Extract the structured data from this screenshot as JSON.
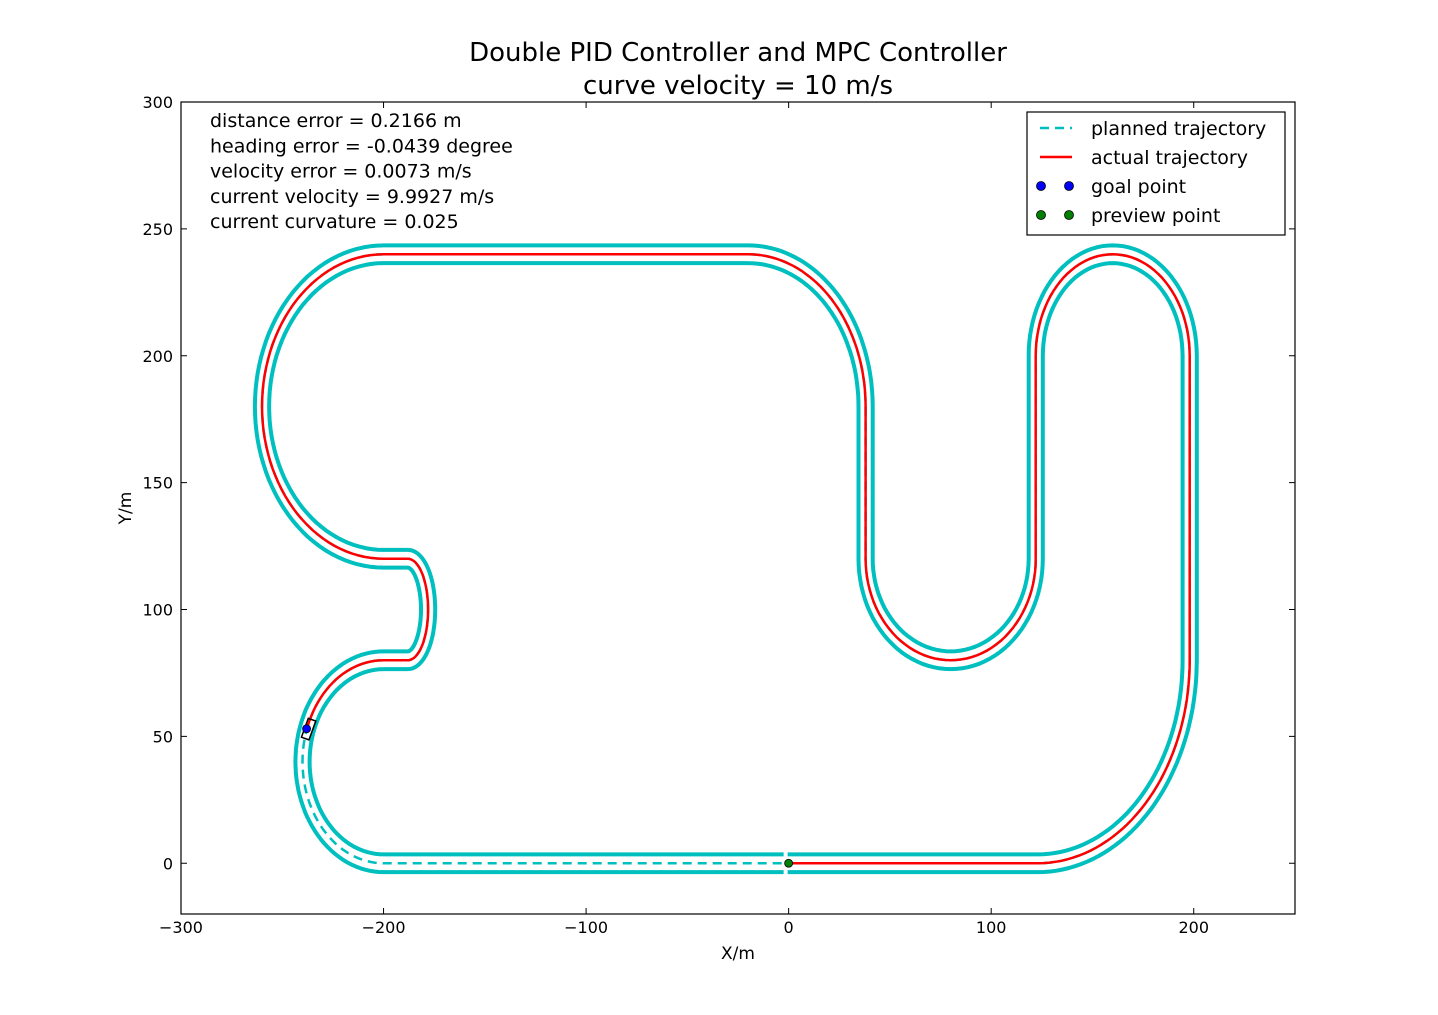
{
  "chart_data": {
    "type": "line",
    "title": "Double PID Controller and MPC Controller",
    "subtitle": "curve velocity = 10 m/s",
    "xlabel": "X/m",
    "ylabel": "Y/m",
    "xlim": [
      -300,
      250
    ],
    "ylim": [
      -20,
      300
    ],
    "xticks": [
      -300,
      -200,
      -100,
      0,
      100,
      200
    ],
    "yticks": [
      0,
      50,
      100,
      150,
      200,
      250,
      300
    ],
    "xtick_labels": [
      "−300",
      "−200",
      "−100",
      "0",
      "100",
      "200"
    ],
    "ytick_labels": [
      "0",
      "50",
      "100",
      "150",
      "200",
      "250",
      "300"
    ],
    "grid": false,
    "legend_position": "top-right",
    "legend": [
      {
        "label": "planned trajectory",
        "style": "dashed-line",
        "color": "#00bfbf"
      },
      {
        "label": "actual trajectory",
        "style": "solid-line",
        "color": "#ff0000"
      },
      {
        "label": "goal point",
        "style": "marker",
        "color": "#0000ff"
      },
      {
        "label": "preview point",
        "style": "marker",
        "color": "#008000"
      }
    ],
    "info_lines": [
      "distance error = 0.2166 m",
      "heading error = -0.0439 degree",
      "velocity error = 0.0073 m/s",
      "current velocity = 9.9927 m/s",
      "current curvature = 0.025"
    ],
    "road_half_width": 3.5,
    "track_segments": [
      {
        "kind": "line",
        "from": [
          0,
          0
        ],
        "to": [
          123,
          0
        ]
      },
      {
        "kind": "arc",
        "center": [
          123,
          80
        ],
        "r": 80,
        "from_deg": -90,
        "to_deg": 0,
        "ry": 80,
        "rx": 75
      },
      {
        "kind": "line",
        "from": [
          198,
          80
        ],
        "to": [
          198,
          200
        ]
      },
      {
        "kind": "arc",
        "center": [
          160,
          200
        ],
        "rx": 38,
        "ry": 40,
        "from_deg": 0,
        "to_deg": 180
      },
      {
        "kind": "line",
        "from": [
          122,
          200
        ],
        "to": [
          122,
          120
        ]
      },
      {
        "kind": "arc",
        "center": [
          80,
          120
        ],
        "rx": 42,
        "ry": 40,
        "from_deg": 0,
        "to_deg": -180
      },
      {
        "kind": "line",
        "from": [
          38,
          120
        ],
        "to": [
          38,
          180
        ]
      },
      {
        "kind": "arc",
        "center": [
          -20,
          180
        ],
        "rx": 58,
        "ry": 60,
        "from_deg": 0,
        "to_deg": 90
      },
      {
        "kind": "line",
        "from": [
          -20,
          240
        ],
        "to": [
          -200,
          240
        ]
      },
      {
        "kind": "arc",
        "center": [
          -200,
          180
        ],
        "rx": 60,
        "ry": 60,
        "from_deg": 90,
        "to_deg": 270
      },
      {
        "kind": "arc",
        "center": [
          -188,
          100
        ],
        "rx": 10,
        "ry": 20,
        "from_deg": 90,
        "to_deg": -90,
        "approx": true
      },
      {
        "kind": "arc",
        "center": [
          -200,
          40
        ],
        "rx": 40,
        "ry": 40,
        "from_deg": 90,
        "to_deg": 270
      },
      {
        "kind": "line",
        "from": [
          -200,
          0
        ],
        "to": [
          0,
          0
        ]
      }
    ],
    "actual_trajectory_end": [
      -237,
      54
    ],
    "goal_point": [
      -238,
      53
    ],
    "preview_point": [
      0,
      0
    ]
  },
  "colors": {
    "road_edge": "#00bfbf",
    "planned": "#00bfbf",
    "actual": "#ff0000",
    "goal": "#0000ff",
    "preview": "#008000"
  }
}
